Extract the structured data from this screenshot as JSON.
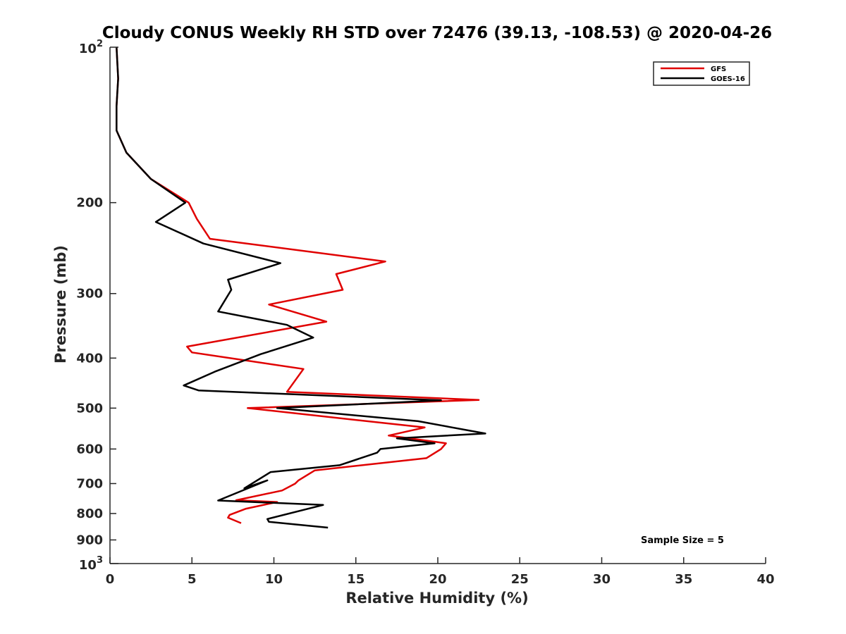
{
  "chart_data": {
    "type": "line",
    "title": "Cloudy CONUS Weekly RH STD over 72476 (39.13, -108.53) @ 2020-04-26",
    "xlabel": "Relative Humidity (%)",
    "ylabel": "Pressure (mb)",
    "xlim": [
      0,
      40
    ],
    "ylim": [
      100,
      1000
    ],
    "y_scale": "log",
    "y_reversed": true,
    "grid": false,
    "legend_position": "top-right",
    "x_ticks": [
      0,
      5,
      10,
      15,
      20,
      25,
      30,
      35,
      40
    ],
    "x_tick_labels": [
      "0",
      "5",
      "10",
      "15",
      "20",
      "25",
      "30",
      "35",
      "40"
    ],
    "y_ticks": [
      200,
      300,
      400,
      500,
      600,
      700,
      800,
      900
    ],
    "y_tick_labels": [
      "200",
      "300",
      "400",
      "500",
      "600",
      "700",
      "800",
      "900"
    ],
    "y_decade_ticks": [
      {
        "value": 100,
        "base": "10",
        "exp": "2"
      },
      {
        "value": 1000,
        "base": "10",
        "exp": "3"
      }
    ],
    "annotation": "Sample Size = 5",
    "series": [
      {
        "name": "GFS",
        "color": "#e00000",
        "points": [
          [
            0.4,
            100
          ],
          [
            0.5,
            115
          ],
          [
            0.4,
            130
          ],
          [
            0.4,
            145
          ],
          [
            1.0,
            160
          ],
          [
            2.5,
            180
          ],
          [
            4.8,
            200
          ],
          [
            5.3,
            215
          ],
          [
            6.1,
            235
          ],
          [
            16.8,
            260
          ],
          [
            13.8,
            275
          ],
          [
            14.2,
            295
          ],
          [
            9.7,
            315
          ],
          [
            13.2,
            340
          ],
          [
            4.7,
            380
          ],
          [
            5.0,
            390
          ],
          [
            11.8,
            420
          ],
          [
            10.8,
            465
          ],
          [
            22.5,
            482
          ],
          [
            8.4,
            500
          ],
          [
            19.2,
            545
          ],
          [
            17.0,
            565
          ],
          [
            20.5,
            585
          ],
          [
            20.2,
            600
          ],
          [
            19.3,
            625
          ],
          [
            12.5,
            660
          ],
          [
            11.5,
            690
          ],
          [
            11.3,
            700
          ],
          [
            10.5,
            722
          ],
          [
            7.7,
            754
          ],
          [
            10.2,
            760
          ],
          [
            8.3,
            783
          ],
          [
            7.3,
            805
          ],
          [
            7.2,
            815
          ],
          [
            8.0,
            835
          ]
        ]
      },
      {
        "name": "GOES-16",
        "color": "#000000",
        "points": [
          [
            0.4,
            100
          ],
          [
            0.5,
            115
          ],
          [
            0.4,
            130
          ],
          [
            0.4,
            145
          ],
          [
            1.0,
            160
          ],
          [
            2.5,
            180
          ],
          [
            4.6,
            200
          ],
          [
            2.8,
            218
          ],
          [
            5.7,
            240
          ],
          [
            10.4,
            262
          ],
          [
            7.2,
            282
          ],
          [
            7.4,
            295
          ],
          [
            6.6,
            325
          ],
          [
            10.8,
            345
          ],
          [
            12.4,
            365
          ],
          [
            9.2,
            393
          ],
          [
            6.4,
            425
          ],
          [
            4.5,
            452
          ],
          [
            5.4,
            462
          ],
          [
            20.2,
            483
          ],
          [
            10.2,
            500
          ],
          [
            18.8,
            530
          ],
          [
            22.9,
            560
          ],
          [
            17.5,
            572
          ],
          [
            19.8,
            585
          ],
          [
            16.5,
            600
          ],
          [
            16.3,
            610
          ],
          [
            14.0,
            645
          ],
          [
            9.8,
            665
          ],
          [
            8.2,
            715
          ],
          [
            9.6,
            690
          ],
          [
            6.6,
            755
          ],
          [
            13.0,
            770
          ],
          [
            9.6,
            820
          ],
          [
            9.7,
            830
          ],
          [
            13.3,
            852
          ]
        ]
      }
    ]
  }
}
